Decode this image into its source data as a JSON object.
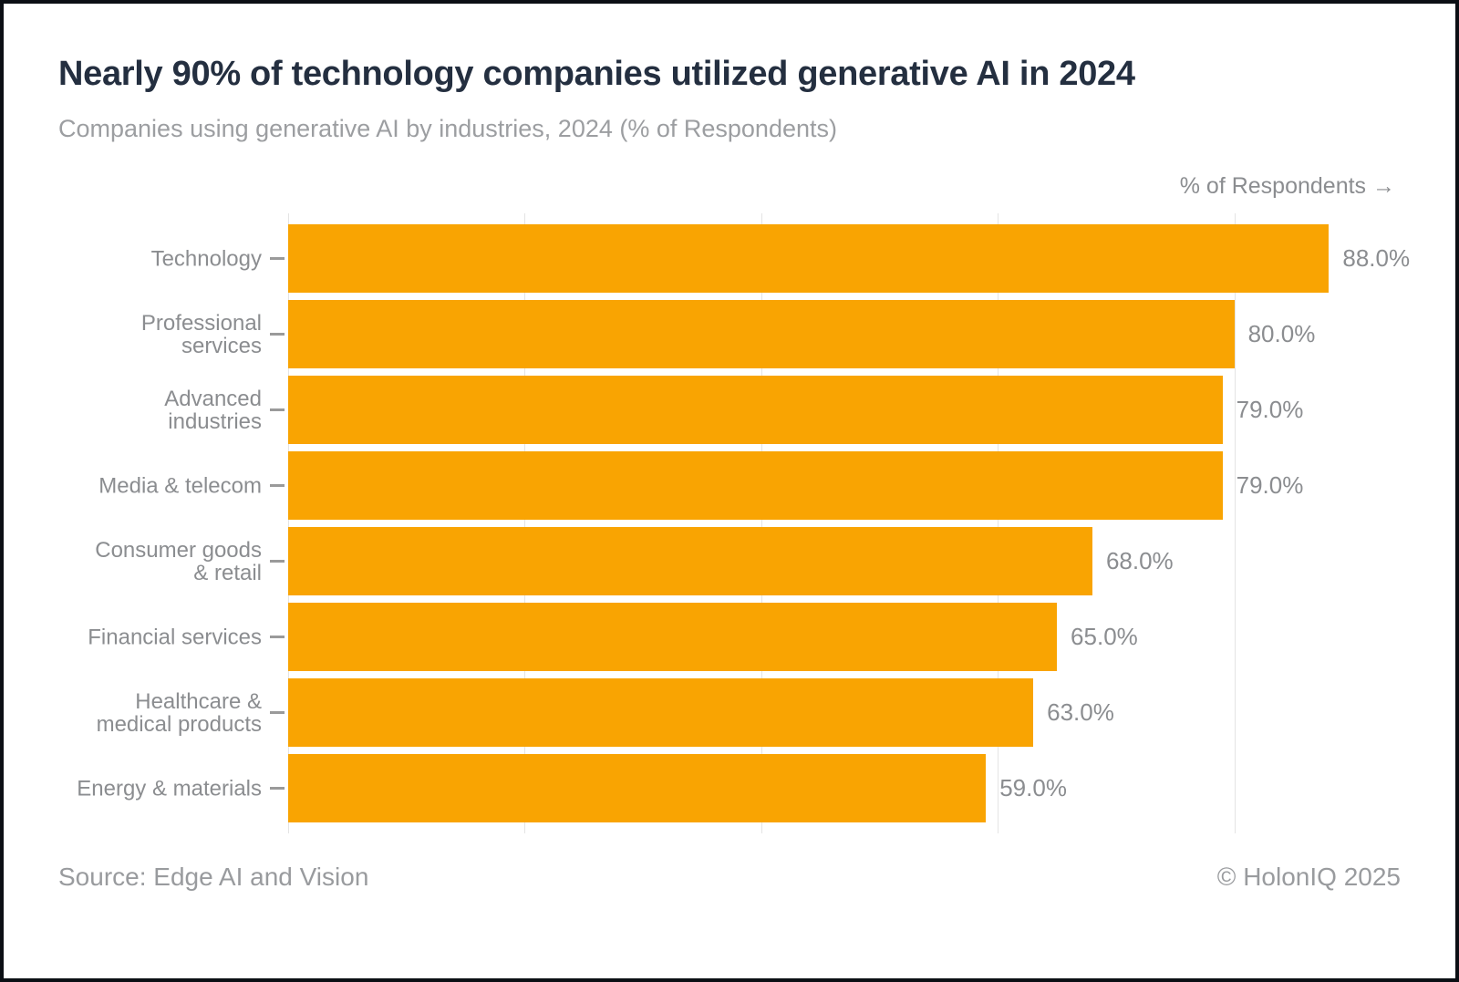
{
  "header": {
    "title": "Nearly 90% of technology companies utilized generative AI in 2024",
    "subtitle": "Companies using generative AI by industries, 2024 (% of Respondents)"
  },
  "axis": {
    "top_label": "% of Respondents →",
    "tick_values": [
      0,
      20,
      40,
      60,
      80
    ]
  },
  "chart_data": {
    "type": "bar",
    "orientation": "horizontal",
    "title": "Nearly 90% of technology companies utilized generative AI in 2024",
    "subtitle": "Companies using generative AI by industries, 2024 (% of Respondents)",
    "xlabel": "% of Respondents",
    "ylabel": "",
    "xlim": [
      0,
      88.6
    ],
    "grid": true,
    "legend": "none",
    "categories": [
      "Technology",
      "Professional services",
      "Advanced industries",
      "Media & telecom",
      "Consumer goods & retail",
      "Financial services",
      "Healthcare & medical products",
      "Energy & materials"
    ],
    "category_lines": [
      [
        "Technology"
      ],
      [
        "Professional",
        "services"
      ],
      [
        "Advanced",
        "industries"
      ],
      [
        "Media & telecom"
      ],
      [
        "Consumer goods",
        "& retail"
      ],
      [
        "Financial services"
      ],
      [
        "Healthcare &",
        "medical products"
      ],
      [
        "Energy & materials"
      ]
    ],
    "values": [
      88,
      80,
      79,
      79,
      68,
      65,
      63,
      59
    ],
    "value_labels": [
      "88.0%",
      "80.0%",
      "79.0%",
      "79.0%",
      "68.0%",
      "65.0%",
      "63.0%",
      "59.0%"
    ]
  },
  "footer": {
    "source": "Source: Edge AI and Vision",
    "copyright": "© HolonIQ 2025"
  },
  "colors": {
    "bar": "#f9a402",
    "title_text": "#242f40",
    "muted_text": "#8b8d90",
    "gridline": "#e4e4e4",
    "tick_dash": "#9a9a9a",
    "frame": "#0b0f14"
  }
}
